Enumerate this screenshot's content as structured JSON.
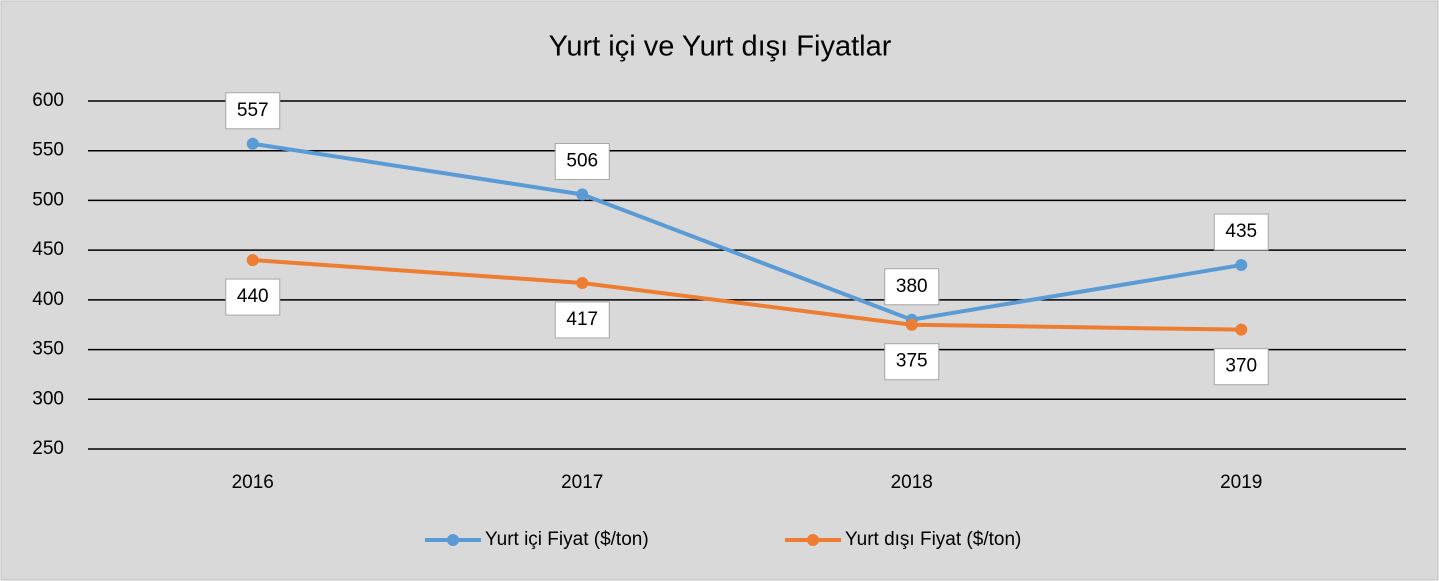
{
  "chart_data": {
    "type": "line",
    "title": "Yurt içi ve Yurt dışı Fiyatlar",
    "categories": [
      "2016",
      "2017",
      "2018",
      "2019"
    ],
    "series": [
      {
        "name": "Yurt içi Fiyat ($/ton)",
        "color": "#5b9bd5",
        "values": [
          557,
          506,
          380,
          435
        ]
      },
      {
        "name": "Yurt dışı Fiyat ($/ton)",
        "color": "#ed7d31",
        "values": [
          440,
          417,
          375,
          370
        ]
      }
    ],
    "ylim": [
      250,
      600
    ],
    "yticks": [
      250,
      300,
      350,
      400,
      450,
      500,
      550,
      600
    ],
    "grid": true,
    "legend": "bottom"
  }
}
